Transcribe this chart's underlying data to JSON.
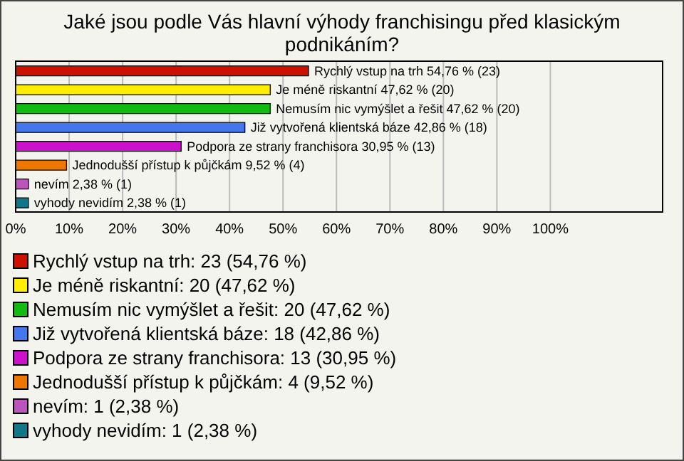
{
  "chart_data": {
    "type": "bar",
    "orientation": "horizontal",
    "title": "Jaké jsou podle Vás hlavní výhody franchisingu před klasickým podnikáním?",
    "categories": [
      null,
      null,
      null,
      null,
      null,
      null,
      null,
      null
    ],
    "values": [
      54.76,
      47.62,
      47.62,
      42.86,
      30.95,
      9.52,
      2.38,
      2.38
    ],
    "colors": [
      "#cc1100",
      "#ffee00",
      "#11bb11",
      "#4477ee",
      "#cc11cc",
      "#ee7700",
      "#bb55bb",
      "#117788"
    ],
    "value_labels": [
      "Rychlý vstup na trh 54,76 % (23)",
      "Je méně riskantní 47,62 % (20)",
      "Nemusím nic vymýšlet a řešit 47,62 % (20)",
      "Již vytvořená klientská báze 42,86 % (18)",
      "Podpora ze strany franchisora 30,95 % (13)",
      "Jednodušší přístup k půjčkám 9,52 % (4)",
      "nevím 2,38 % (1)",
      "vyhody nevidím 2,38 % (1)"
    ],
    "xlim": [
      0,
      121
    ],
    "xticks": [
      {
        "value": 0,
        "label": "0%"
      },
      {
        "value": 10,
        "label": "10%"
      },
      {
        "value": 20,
        "label": "20%"
      },
      {
        "value": 30,
        "label": "30%"
      },
      {
        "value": 40,
        "label": "40%"
      },
      {
        "value": 50,
        "label": "50%"
      },
      {
        "value": 60,
        "label": "60%"
      },
      {
        "value": 70,
        "label": "70%"
      },
      {
        "value": 80,
        "label": "80%"
      },
      {
        "value": 90,
        "label": "90%"
      },
      {
        "value": 100,
        "label": "100%"
      }
    ],
    "grid": "x",
    "annotations": [
      "Rychlý vstup na trh: 23 (54,76 %)",
      "Je méně riskantní: 20 (47,62 %)",
      "Nemusím nic vymýšlet a řešit: 20 (47,62 %)",
      "Již vytvořená klientská báze: 18 (42,86 %)",
      "Podpora ze strany franchisora: 13 (30,95 %)",
      "Jednodušší přístup k půjčkám: 4 (9,52 %)",
      "nevím: 1 (2,38 %)",
      "vyhody nevidím: 1 (2,38 %)"
    ]
  }
}
